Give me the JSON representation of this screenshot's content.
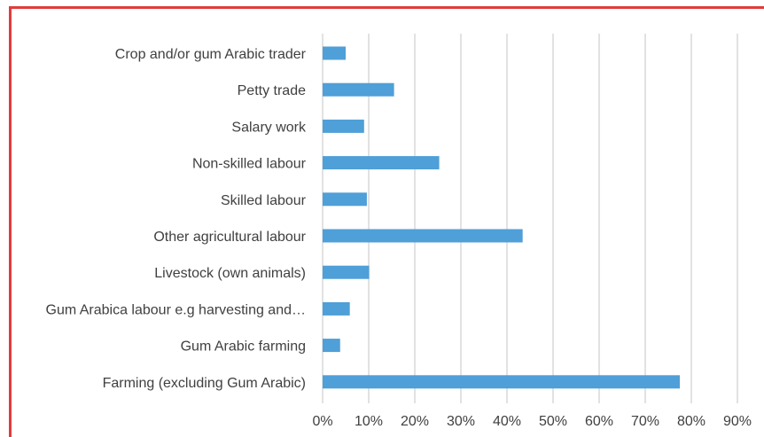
{
  "colors": {
    "bar": "#4f9fd8",
    "grid": "#d9d9d9",
    "frame_border": "#e03c3c",
    "text": "#404040"
  },
  "chart_data": {
    "type": "bar",
    "orientation": "horizontal",
    "categories": [
      "Crop and/or gum Arabic trader",
      "Petty trade",
      "Salary work",
      "Non-skilled labour",
      "Skilled labour",
      "Other agricultural labour",
      "Livestock (own animals)",
      "Gum Arabica labour e.g harvesting and…",
      "Gum Arabic farming",
      "Farming (excluding Gum Arabic)"
    ],
    "values": [
      5,
      15.5,
      9,
      25.3,
      9.6,
      43.4,
      10.1,
      5.9,
      3.8,
      77.5
    ],
    "xlim": [
      0,
      90
    ],
    "xticks": [
      "0%",
      "10%",
      "20%",
      "30%",
      "40%",
      "50%",
      "60%",
      "70%",
      "80%",
      "90%"
    ],
    "title": "",
    "xlabel": "",
    "ylabel": "",
    "grid": "vertical",
    "legend": "none"
  }
}
